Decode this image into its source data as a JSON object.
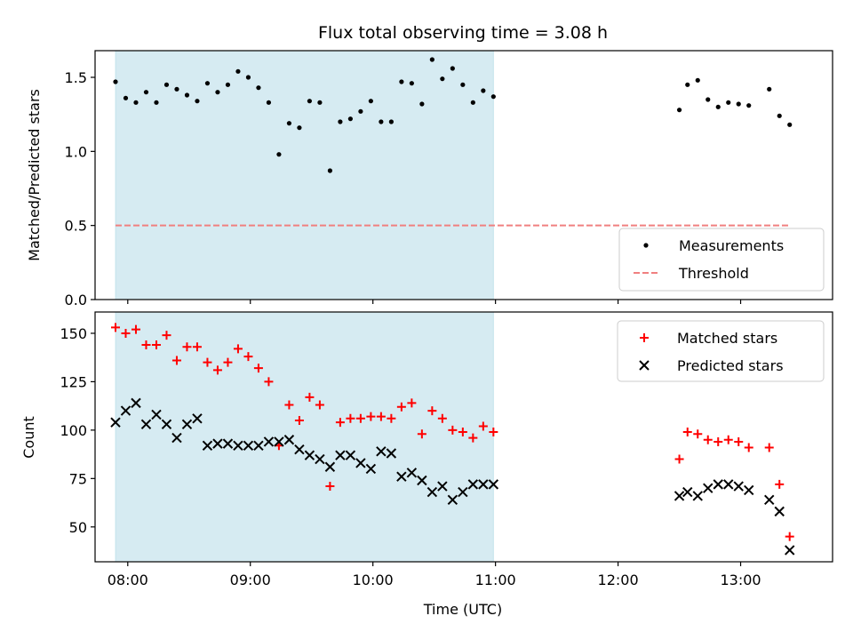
{
  "chart_data": [
    {
      "type": "scatter",
      "title": "Flux total observing time = 3.08 h",
      "ylabel": "Matched/Predicted stars",
      "xlabel": "",
      "xlim": [
        "07:44",
        "13:45"
      ],
      "ylim": [
        0,
        1.68
      ],
      "x_ticks": [
        "08:00",
        "09:00",
        "10:00",
        "11:00",
        "12:00",
        "13:00"
      ],
      "y_ticks": [
        "0.0",
        "0.5",
        "1.0",
        "1.5"
      ],
      "shaded_region": {
        "from": "07:54",
        "to": "10:59",
        "color": "#add8e6"
      },
      "legend_position": "lower right",
      "series": [
        {
          "name": "Measurements",
          "color": "#000000",
          "marker": "dot",
          "points": [
            [
              "07:54",
              1.47
            ],
            [
              "07:59",
              1.36
            ],
            [
              "08:04",
              1.33
            ],
            [
              "08:09",
              1.4
            ],
            [
              "08:14",
              1.33
            ],
            [
              "08:19",
              1.45
            ],
            [
              "08:24",
              1.42
            ],
            [
              "08:29",
              1.38
            ],
            [
              "08:34",
              1.34
            ],
            [
              "08:39",
              1.46
            ],
            [
              "08:44",
              1.4
            ],
            [
              "08:49",
              1.45
            ],
            [
              "08:54",
              1.54
            ],
            [
              "08:59",
              1.5
            ],
            [
              "09:04",
              1.43
            ],
            [
              "09:09",
              1.33
            ],
            [
              "09:14",
              0.98
            ],
            [
              "09:19",
              1.19
            ],
            [
              "09:24",
              1.16
            ],
            [
              "09:29",
              1.34
            ],
            [
              "09:34",
              1.33
            ],
            [
              "09:39",
              0.87
            ],
            [
              "09:44",
              1.2
            ],
            [
              "09:49",
              1.22
            ],
            [
              "09:54",
              1.27
            ],
            [
              "09:59",
              1.34
            ],
            [
              "10:04",
              1.2
            ],
            [
              "10:09",
              1.2
            ],
            [
              "10:14",
              1.47
            ],
            [
              "10:19",
              1.46
            ],
            [
              "10:24",
              1.32
            ],
            [
              "10:29",
              1.62
            ],
            [
              "10:34",
              1.49
            ],
            [
              "10:39",
              1.56
            ],
            [
              "10:44",
              1.45
            ],
            [
              "10:49",
              1.33
            ],
            [
              "10:54",
              1.41
            ],
            [
              "10:59",
              1.37
            ],
            [
              "12:30",
              1.28
            ],
            [
              "12:34",
              1.45
            ],
            [
              "12:39",
              1.48
            ],
            [
              "12:44",
              1.35
            ],
            [
              "12:49",
              1.3
            ],
            [
              "12:54",
              1.33
            ],
            [
              "12:59",
              1.32
            ],
            [
              "13:04",
              1.31
            ],
            [
              "13:14",
              1.42
            ],
            [
              "13:19",
              1.24
            ],
            [
              "13:24",
              1.18
            ]
          ]
        },
        {
          "name": "Threshold",
          "color": "#f08080",
          "style": "dashed",
          "points": [
            [
              "07:54",
              0.5
            ],
            [
              "13:24",
              0.5
            ]
          ]
        }
      ]
    },
    {
      "type": "scatter",
      "title": "",
      "ylabel": "Count",
      "xlabel": "Time (UTC)",
      "xlim": [
        "07:44",
        "13:45"
      ],
      "ylim": [
        32,
        161
      ],
      "x_ticks": [
        "08:00",
        "09:00",
        "10:00",
        "11:00",
        "12:00",
        "13:00"
      ],
      "y_ticks": [
        "50",
        "75",
        "100",
        "125",
        "150"
      ],
      "shaded_region": {
        "from": "07:54",
        "to": "10:59",
        "color": "#add8e6"
      },
      "legend_position": "upper right",
      "series": [
        {
          "name": "Matched stars",
          "color": "#ff0000",
          "marker": "plus",
          "points": [
            [
              "07:54",
              153
            ],
            [
              "07:59",
              150
            ],
            [
              "08:04",
              152
            ],
            [
              "08:09",
              144
            ],
            [
              "08:14",
              144
            ],
            [
              "08:19",
              149
            ],
            [
              "08:24",
              136
            ],
            [
              "08:29",
              143
            ],
            [
              "08:34",
              143
            ],
            [
              "08:39",
              135
            ],
            [
              "08:44",
              131
            ],
            [
              "08:49",
              135
            ],
            [
              "08:54",
              142
            ],
            [
              "08:59",
              138
            ],
            [
              "09:04",
              132
            ],
            [
              "09:09",
              125
            ],
            [
              "09:14",
              92
            ],
            [
              "09:19",
              113
            ],
            [
              "09:24",
              105
            ],
            [
              "09:29",
              117
            ],
            [
              "09:34",
              113
            ],
            [
              "09:39",
              71
            ],
            [
              "09:44",
              104
            ],
            [
              "09:49",
              106
            ],
            [
              "09:54",
              106
            ],
            [
              "09:59",
              107
            ],
            [
              "10:04",
              107
            ],
            [
              "10:09",
              106
            ],
            [
              "10:14",
              112
            ],
            [
              "10:19",
              114
            ],
            [
              "10:24",
              98
            ],
            [
              "10:29",
              110
            ],
            [
              "10:34",
              106
            ],
            [
              "10:39",
              100
            ],
            [
              "10:44",
              99
            ],
            [
              "10:49",
              96
            ],
            [
              "10:54",
              102
            ],
            [
              "10:59",
              99
            ],
            [
              "12:30",
              85
            ],
            [
              "12:34",
              99
            ],
            [
              "12:39",
              98
            ],
            [
              "12:44",
              95
            ],
            [
              "12:49",
              94
            ],
            [
              "12:54",
              95
            ],
            [
              "12:59",
              94
            ],
            [
              "13:04",
              91
            ],
            [
              "13:14",
              91
            ],
            [
              "13:19",
              72
            ],
            [
              "13:24",
              45
            ]
          ]
        },
        {
          "name": "Predicted stars",
          "color": "#000000",
          "marker": "x",
          "points": [
            [
              "07:54",
              104
            ],
            [
              "07:59",
              110
            ],
            [
              "08:04",
              114
            ],
            [
              "08:09",
              103
            ],
            [
              "08:14",
              108
            ],
            [
              "08:19",
              103
            ],
            [
              "08:24",
              96
            ],
            [
              "08:29",
              103
            ],
            [
              "08:34",
              106
            ],
            [
              "08:39",
              92
            ],
            [
              "08:44",
              93
            ],
            [
              "08:49",
              93
            ],
            [
              "08:54",
              92
            ],
            [
              "08:59",
              92
            ],
            [
              "09:04",
              92
            ],
            [
              "09:09",
              94
            ],
            [
              "09:14",
              94
            ],
            [
              "09:19",
              95
            ],
            [
              "09:24",
              90
            ],
            [
              "09:29",
              87
            ],
            [
              "09:34",
              85
            ],
            [
              "09:39",
              81
            ],
            [
              "09:44",
              87
            ],
            [
              "09:49",
              87
            ],
            [
              "09:54",
              83
            ],
            [
              "09:59",
              80
            ],
            [
              "10:04",
              89
            ],
            [
              "10:09",
              88
            ],
            [
              "10:14",
              76
            ],
            [
              "10:19",
              78
            ],
            [
              "10:24",
              74
            ],
            [
              "10:29",
              68
            ],
            [
              "10:34",
              71
            ],
            [
              "10:39",
              64
            ],
            [
              "10:44",
              68
            ],
            [
              "10:49",
              72
            ],
            [
              "10:54",
              72
            ],
            [
              "10:59",
              72
            ],
            [
              "12:30",
              66
            ],
            [
              "12:34",
              68
            ],
            [
              "12:39",
              66
            ],
            [
              "12:44",
              70
            ],
            [
              "12:49",
              72
            ],
            [
              "12:54",
              72
            ],
            [
              "12:59",
              71
            ],
            [
              "13:04",
              69
            ],
            [
              "13:14",
              64
            ],
            [
              "13:19",
              58
            ],
            [
              "13:24",
              38
            ]
          ]
        }
      ]
    }
  ]
}
